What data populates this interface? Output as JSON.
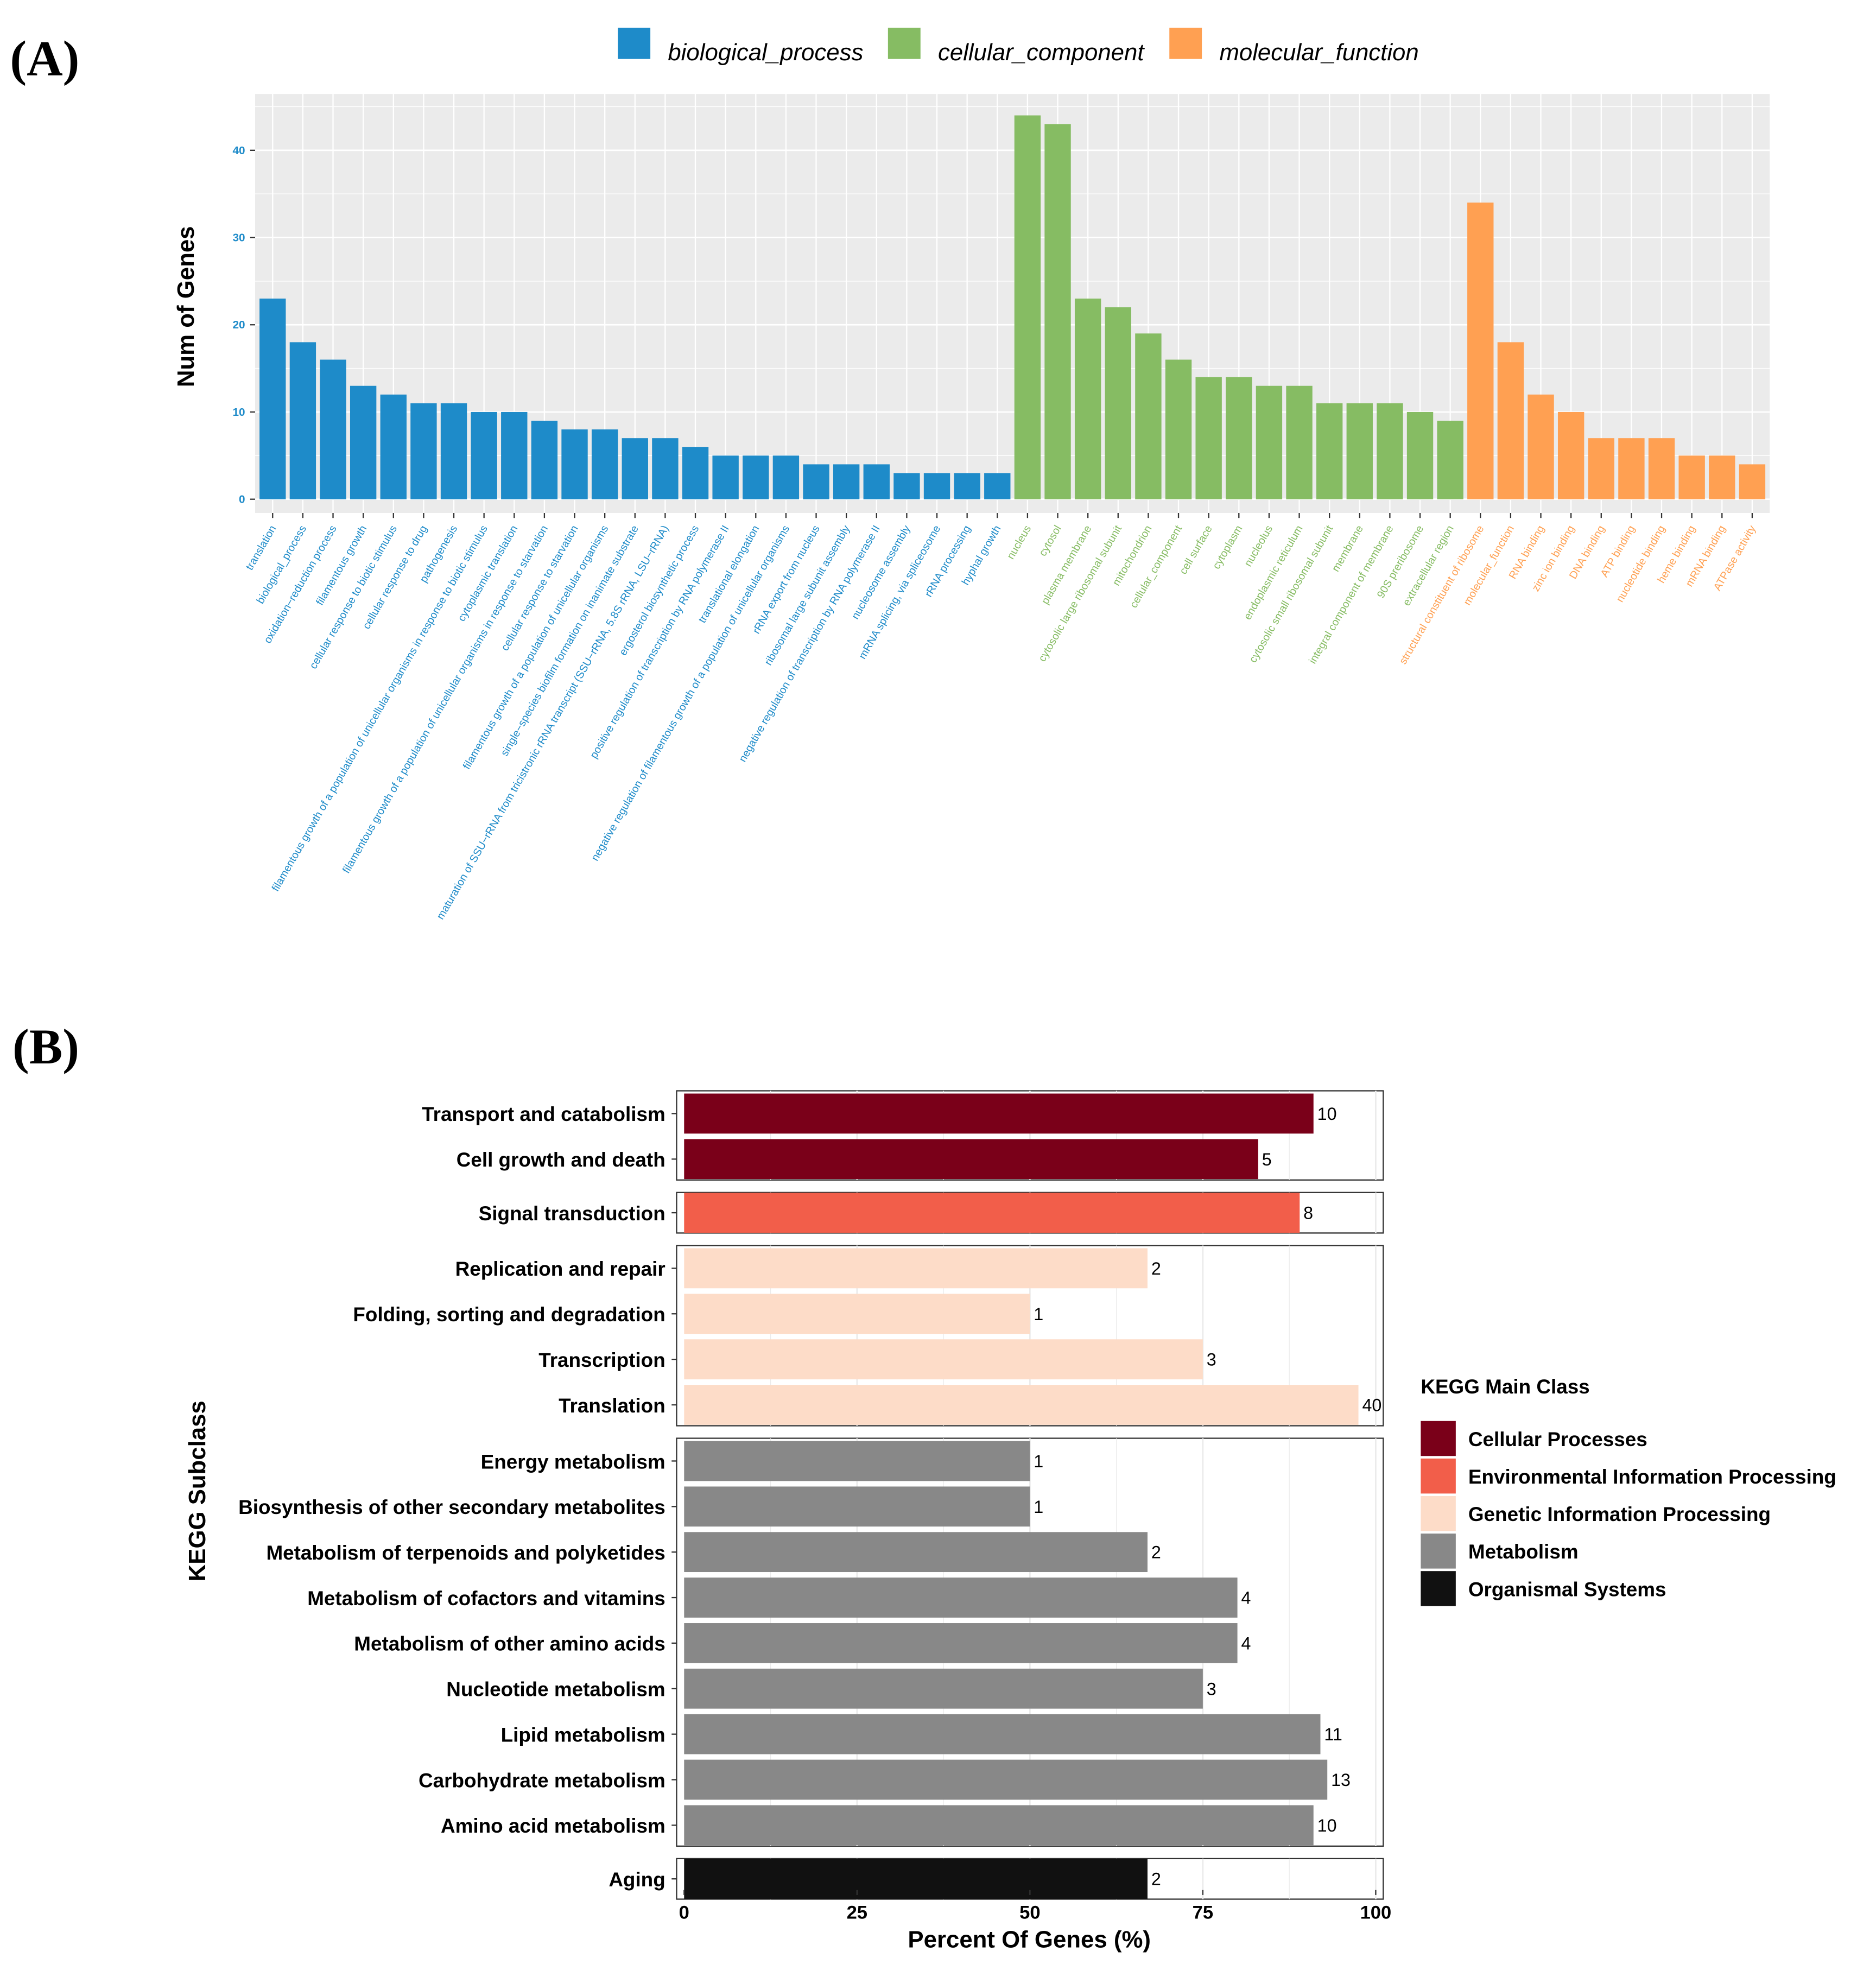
{
  "chart_data": [
    {
      "panel_label": "(A)",
      "type": "bar",
      "ylabel": "Num of Genes",
      "xlabel": "",
      "ylim": [
        0,
        46
      ],
      "yticks": [
        0,
        10,
        20,
        30,
        40
      ],
      "grid": true,
      "legend_position": "top",
      "colors": {
        "biological_process": "#1E8BC9",
        "cellular_component": "#86BC63",
        "molecular_function": "#FFA052"
      },
      "series": [
        {
          "name": "biological_process",
          "categories": [
            "translation",
            "biological_process",
            "oxidation−reduction process",
            "filamentous growth",
            "cellular response to biotic stimulus",
            "cellular response to drug",
            "pathogenesis",
            "filamentous growth of a population of unicellular organisms in response to biotic stimulus",
            "cytoplasmic translation",
            "filamentous growth of a population of unicellular organisms in response to starvation",
            "cellular response to starvation",
            "filamentous growth of a population of unicellular organisms",
            "single−species biofilm formation on inanimate substrate",
            "maturation of SSU−rRNA from tricistronic rRNA transcript (SSU−rRNA, 5.8S rRNA, LSU−rRNA)",
            "ergosterol biosynthetic process",
            "positive regulation of transcription by RNA polymerase II",
            "translational elongation",
            "negative regulation of filamentous growth of a population of unicellular organisms",
            "rRNA export from nucleus",
            "ribosomal large subunit assembly",
            "negative regulation of transcription by RNA polymerase II",
            "nucleosome assembly",
            "mRNA splicing, via spliceosome",
            "rRNA processing",
            "hyphal growth"
          ],
          "values": [
            23,
            18,
            16,
            13,
            12,
            11,
            11,
            10,
            10,
            9,
            8,
            8,
            7,
            7,
            6,
            5,
            5,
            5,
            4,
            4,
            4,
            3,
            3,
            3,
            3
          ]
        },
        {
          "name": "cellular_component",
          "categories": [
            "nucleus",
            "cytosol",
            "plasma membrane",
            "cytosolic large ribosomal subunit",
            "mitochondrion",
            "cellular_component",
            "cell surface",
            "cytoplasm",
            "nucleolus",
            "endoplasmic reticulum",
            "cytosolic small ribosomal subunit",
            "membrane",
            "integral component of membrane",
            "90S preribosome",
            "extracellular region"
          ],
          "values": [
            44,
            43,
            23,
            22,
            19,
            16,
            14,
            14,
            13,
            13,
            11,
            11,
            11,
            10,
            9
          ]
        },
        {
          "name": "molecular_function",
          "categories": [
            "structural constituent of ribosome",
            "molecular_function",
            "RNA binding",
            "zinc ion binding",
            "DNA binding",
            "ATP binding",
            "nucleotide binding",
            "heme binding",
            "mRNA binding",
            "ATPase activity"
          ],
          "values": [
            34,
            18,
            12,
            10,
            7,
            7,
            7,
            5,
            5,
            4
          ]
        }
      ]
    },
    {
      "panel_label": "(B)",
      "type": "bar",
      "orientation": "horizontal",
      "xlabel": "Percent Of Genes (%)",
      "ylabel": "KEGG Subclass",
      "xlim": [
        0,
        100
      ],
      "xticks": [
        0,
        25,
        50,
        75,
        100
      ],
      "grid": true,
      "legend_title": "KEGG Main Class",
      "legend_position": "right",
      "classes": [
        {
          "name": "Cellular Processes",
          "color": "#7A0019"
        },
        {
          "name": "Environmental Information Processing",
          "color": "#F25E4A"
        },
        {
          "name": "Genetic Information Processing",
          "color": "#FDDCC8"
        },
        {
          "name": "Metabolism",
          "color": "#888888"
        },
        {
          "name": "Organismal Systems",
          "color": "#111111"
        }
      ],
      "groups": [
        {
          "class": "Cellular Processes",
          "rows": [
            {
              "label": "Transport and catabolism",
              "percent": 91,
              "count": "10"
            },
            {
              "label": "Cell growth and death",
              "percent": 83,
              "count": "5"
            }
          ]
        },
        {
          "class": "Environmental Information Processing",
          "rows": [
            {
              "label": "Signal transduction",
              "percent": 89,
              "count": "8"
            }
          ]
        },
        {
          "class": "Genetic Information Processing",
          "rows": [
            {
              "label": "Replication and repair",
              "percent": 67,
              "count": "2"
            },
            {
              "label": "Folding, sorting and degradation",
              "percent": 50,
              "count": "1"
            },
            {
              "label": "Transcription",
              "percent": 75,
              "count": "3"
            },
            {
              "label": "Translation",
              "percent": 97.5,
              "count": "40"
            }
          ]
        },
        {
          "class": "Metabolism",
          "rows": [
            {
              "label": "Energy metabolism",
              "percent": 50,
              "count": "1"
            },
            {
              "label": "Biosynthesis of other secondary metabolites",
              "percent": 50,
              "count": "1"
            },
            {
              "label": "Metabolism of terpenoids and polyketides",
              "percent": 67,
              "count": "2"
            },
            {
              "label": "Metabolism of cofactors and vitamins",
              "percent": 80,
              "count": "4"
            },
            {
              "label": "Metabolism of other amino acids",
              "percent": 80,
              "count": "4"
            },
            {
              "label": "Nucleotide metabolism",
              "percent": 75,
              "count": "3"
            },
            {
              "label": "Lipid metabolism",
              "percent": 92,
              "count": "11"
            },
            {
              "label": "Carbohydrate metabolism",
              "percent": 93,
              "count": "13"
            },
            {
              "label": "Amino acid metabolism",
              "percent": 91,
              "count": "10"
            }
          ]
        },
        {
          "class": "Organismal Systems",
          "rows": [
            {
              "label": "Aging",
              "percent": 67,
              "count": "2"
            }
          ]
        }
      ]
    }
  ]
}
